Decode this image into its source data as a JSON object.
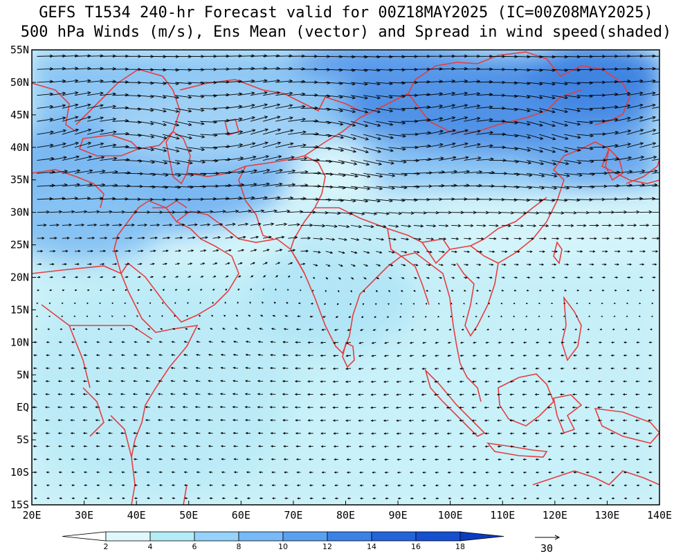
{
  "title": {
    "line1": "GEFS T1534 240-hr Forecast valid for 00Z18MAY2025 (IC=00Z08MAY2025)",
    "line2": "500 hPa Winds (m/s), Ens Mean (vector) and Spread in wind speed(shaded)"
  },
  "map": {
    "lon_range": [
      20,
      140
    ],
    "lat_range": [
      -15,
      55
    ],
    "x_ticks": [
      "20E",
      "30E",
      "40E",
      "50E",
      "60E",
      "70E",
      "80E",
      "90E",
      "100E",
      "110E",
      "120E",
      "130E",
      "140E"
    ],
    "y_ticks": [
      "55N",
      "50N",
      "45N",
      "40N",
      "35N",
      "30N",
      "25N",
      "20N",
      "15N",
      "10N",
      "5N",
      "EQ",
      "5S",
      "10S",
      "15S"
    ],
    "coastline_color": "#e83c3c",
    "vector_color": "#000000"
  },
  "colorbar": {
    "levels": [
      "2",
      "4",
      "6",
      "8",
      "10",
      "12",
      "14",
      "16",
      "18"
    ],
    "colors": [
      "#ffffff",
      "#e0f8fc",
      "#b4ecf6",
      "#96d2fa",
      "#78b9f8",
      "#5aa0f0",
      "#3c82e6",
      "#2464d9",
      "#1450d0",
      "#0a3cc0"
    ]
  },
  "reference_vector": {
    "label": "30"
  }
}
